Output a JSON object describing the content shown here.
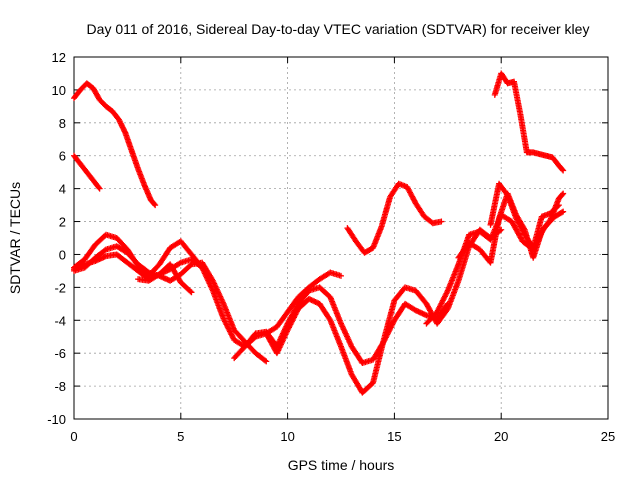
{
  "chart_data": {
    "type": "scatter",
    "title": "Day 011 of 2016, Sidereal Day-to-day VTEC variation (SDTVAR) for receiver kley",
    "xlabel": "GPS time / hours",
    "ylabel": "SDTVAR / TECUs",
    "xlim": [
      0,
      25
    ],
    "ylim": [
      -10,
      12
    ],
    "xticks": [
      "0",
      "5",
      "10",
      "15",
      "20",
      "25"
    ],
    "yticks": [
      "-10",
      "-8",
      "-6",
      "-4",
      "-2",
      "0",
      "2",
      "4",
      "6",
      "8",
      "10",
      "12"
    ],
    "grid": true,
    "marker": "+",
    "color": "#ff0000",
    "series": [
      {
        "x": [
          0.0,
          0.3,
          0.6,
          0.9,
          1.2,
          1.5,
          1.8,
          2.1,
          2.4,
          2.7,
          3.0,
          3.3,
          3.6,
          3.8
        ],
        "y": [
          9.5,
          10.0,
          10.4,
          10.1,
          9.4,
          9.0,
          8.7,
          8.2,
          7.4,
          6.3,
          5.2,
          4.2,
          3.3,
          3.0
        ]
      },
      {
        "x": [
          0.0,
          0.3,
          0.6,
          0.9,
          1.2
        ],
        "y": [
          6.0,
          5.5,
          5.0,
          4.5,
          4.0
        ]
      },
      {
        "x": [
          0.0,
          0.5,
          1.0,
          1.5,
          2.0,
          2.5,
          3.0,
          3.5,
          4.0,
          4.5,
          5.0,
          5.5,
          6.0,
          6.5,
          7.0,
          7.5,
          8.0,
          8.5,
          9.0
        ],
        "y": [
          -1.0,
          -0.8,
          -0.2,
          0.3,
          0.5,
          0.1,
          -0.6,
          -1.1,
          -1.3,
          -1.6,
          -1.2,
          -0.6,
          -0.5,
          -1.6,
          -3.0,
          -4.6,
          -5.3,
          -6.0,
          -6.5
        ]
      },
      {
        "x": [
          0.0,
          0.5,
          1.0,
          1.5,
          2.0,
          2.5,
          3.0,
          3.5,
          4.0,
          4.5,
          5.0,
          5.5,
          6.0
        ],
        "y": [
          -0.8,
          -0.3,
          0.6,
          1.2,
          1.0,
          0.3,
          -0.7,
          -1.3,
          -0.6,
          0.4,
          0.8,
          0.0,
          -0.8
        ]
      },
      {
        "x": [
          0.0,
          0.5,
          1.0,
          1.5,
          2.0,
          2.5,
          3.0,
          3.5,
          4.0,
          4.5,
          5.0,
          5.5
        ],
        "y": [
          -0.9,
          -0.6,
          -0.4,
          -0.1,
          0.0,
          -0.5,
          -1.0,
          -1.5,
          -1.2,
          -0.6,
          -1.7,
          -2.3
        ]
      },
      {
        "x": [
          3.0,
          3.5,
          4.0,
          4.5,
          5.0,
          5.5,
          6.0,
          6.5,
          7.0,
          7.5,
          8.0,
          8.5,
          9.0,
          9.5,
          10.0,
          10.5,
          11.0,
          11.5,
          12.0,
          12.5
        ],
        "y": [
          -1.5,
          -1.6,
          -1.2,
          -0.9,
          -0.5,
          -0.3,
          -0.8,
          -2.2,
          -3.9,
          -5.2,
          -5.6,
          -5.0,
          -4.8,
          -4.4,
          -3.5,
          -2.6,
          -2.0,
          -1.5,
          -1.1,
          -1.3
        ]
      },
      {
        "x": [
          7.5,
          8.0,
          8.5,
          9.0,
          9.5,
          10.0,
          10.5,
          11.0,
          11.5,
          12.0,
          12.5,
          13.0,
          13.5,
          14.0,
          14.5,
          15.0,
          15.5,
          16.0,
          16.5,
          17.0,
          17.5
        ],
        "y": [
          -6.3,
          -5.6,
          -4.8,
          -4.7,
          -5.6,
          -4.2,
          -3.0,
          -2.2,
          -2.0,
          -2.6,
          -4.2,
          -5.6,
          -6.6,
          -6.4,
          -5.3,
          -4.0,
          -3.0,
          -3.4,
          -3.7,
          -3.9,
          -3.0
        ]
      },
      {
        "x": [
          9.0,
          9.5,
          10.0,
          10.5,
          11.0,
          11.5,
          12.0,
          12.5,
          13.0,
          13.5,
          14.0,
          14.5,
          15.0,
          15.5,
          16.0,
          16.5,
          17.0,
          17.5,
          18.0,
          18.5,
          19.0,
          19.5,
          20.0
        ],
        "y": [
          -4.8,
          -6.0,
          -4.6,
          -3.3,
          -2.7,
          -3.0,
          -4.0,
          -5.6,
          -7.3,
          -8.4,
          -7.8,
          -5.2,
          -2.8,
          -2.0,
          -2.2,
          -3.0,
          -4.2,
          -3.3,
          -1.6,
          0.5,
          1.5,
          1.0,
          1.5
        ]
      },
      {
        "x": [
          12.8,
          13.2,
          13.6,
          14.0,
          14.4,
          14.8,
          15.2,
          15.6,
          16.0,
          16.4,
          16.8,
          17.2
        ],
        "y": [
          1.6,
          0.8,
          0.1,
          0.4,
          1.7,
          3.5,
          4.3,
          4.1,
          3.1,
          2.3,
          1.9,
          2.0
        ]
      },
      {
        "x": [
          16.5,
          17.0,
          17.5,
          18.0,
          18.5,
          19.0,
          19.5,
          20.0,
          20.5,
          21.0,
          21.5,
          22.0,
          22.5,
          22.9
        ],
        "y": [
          -4.2,
          -3.5,
          -2.2,
          -0.6,
          1.2,
          1.4,
          0.9,
          2.4,
          2.0,
          0.8,
          0.3,
          1.6,
          2.3,
          2.6
        ]
      },
      {
        "x": [
          18.0,
          18.5,
          19.0,
          19.5,
          19.9,
          20.3,
          20.7,
          21.1,
          21.5,
          21.9,
          22.3,
          22.7,
          22.9
        ],
        "y": [
          -0.2,
          0.7,
          0.3,
          -0.5,
          2.2,
          3.7,
          2.4,
          1.5,
          -0.2,
          1.4,
          2.1,
          3.4,
          3.7
        ]
      },
      {
        "x": [
          19.5,
          19.9,
          20.3,
          20.7,
          21.1,
          21.5,
          21.9,
          22.3,
          22.7
        ],
        "y": [
          1.8,
          4.3,
          3.6,
          2.2,
          1.2,
          0.4,
          2.3,
          2.5,
          3.0
        ]
      },
      {
        "x": [
          19.7,
          20.0,
          20.3,
          20.6,
          20.9,
          21.2,
          21.5,
          21.8,
          22.1,
          22.4,
          22.7,
          22.9
        ],
        "y": [
          9.7,
          11.0,
          10.4,
          10.5,
          8.5,
          6.2,
          6.2,
          6.1,
          6.0,
          5.9,
          5.4,
          5.1
        ]
      }
    ]
  }
}
